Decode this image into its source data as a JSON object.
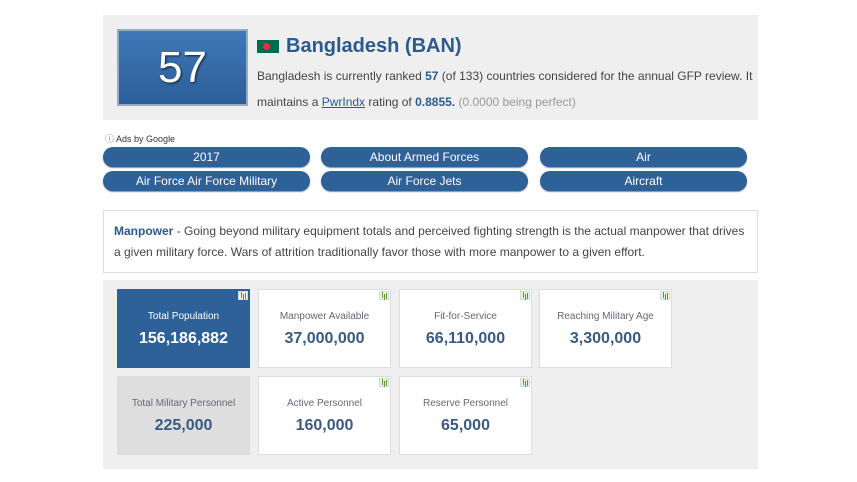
{
  "header": {
    "rank": "57",
    "country": "Bangladesh (BAN)",
    "desc_1": "Bangladesh is currently ranked ",
    "rank_bold": "57",
    "desc_2": " (of 133) countries considered for the annual GFP review. It maintains a ",
    "link": "PwrIndx",
    "desc_3": " rating of ",
    "rating": "0.8855.",
    "desc_4": " (0.0000 being perfect)",
    "flag_icon": "bangladesh-flag"
  },
  "ads_label": "Ads by Google",
  "buttons": [
    "2017",
    "About Armed Forces",
    "Air",
    "Air Force Air Force Military",
    "Air Force Jets",
    "Aircraft"
  ],
  "manpower": {
    "heading": "Manpower",
    "text": " - Going beyond military equipment totals and perceived fighting strength is the actual manpower that drives a given military force. Wars of attrition traditionally favor those with more manpower to a given effort."
  },
  "stats": [
    {
      "label": "Total Population",
      "value": "156,186,882"
    },
    {
      "label": "Manpower Available",
      "value": "37,000,000"
    },
    {
      "label": "Fit-for-Service",
      "value": "66,110,000"
    },
    {
      "label": "Reaching Military Age",
      "value": "3,300,000"
    },
    {
      "label": "Total Military Personnel",
      "value": "225,000"
    },
    {
      "label": "Active Personnel",
      "value": "160,000"
    },
    {
      "label": "Reserve Personnel",
      "value": "65,000"
    }
  ],
  "colors": {
    "accent": "#2e6198",
    "title": "#2c5a8c"
  }
}
